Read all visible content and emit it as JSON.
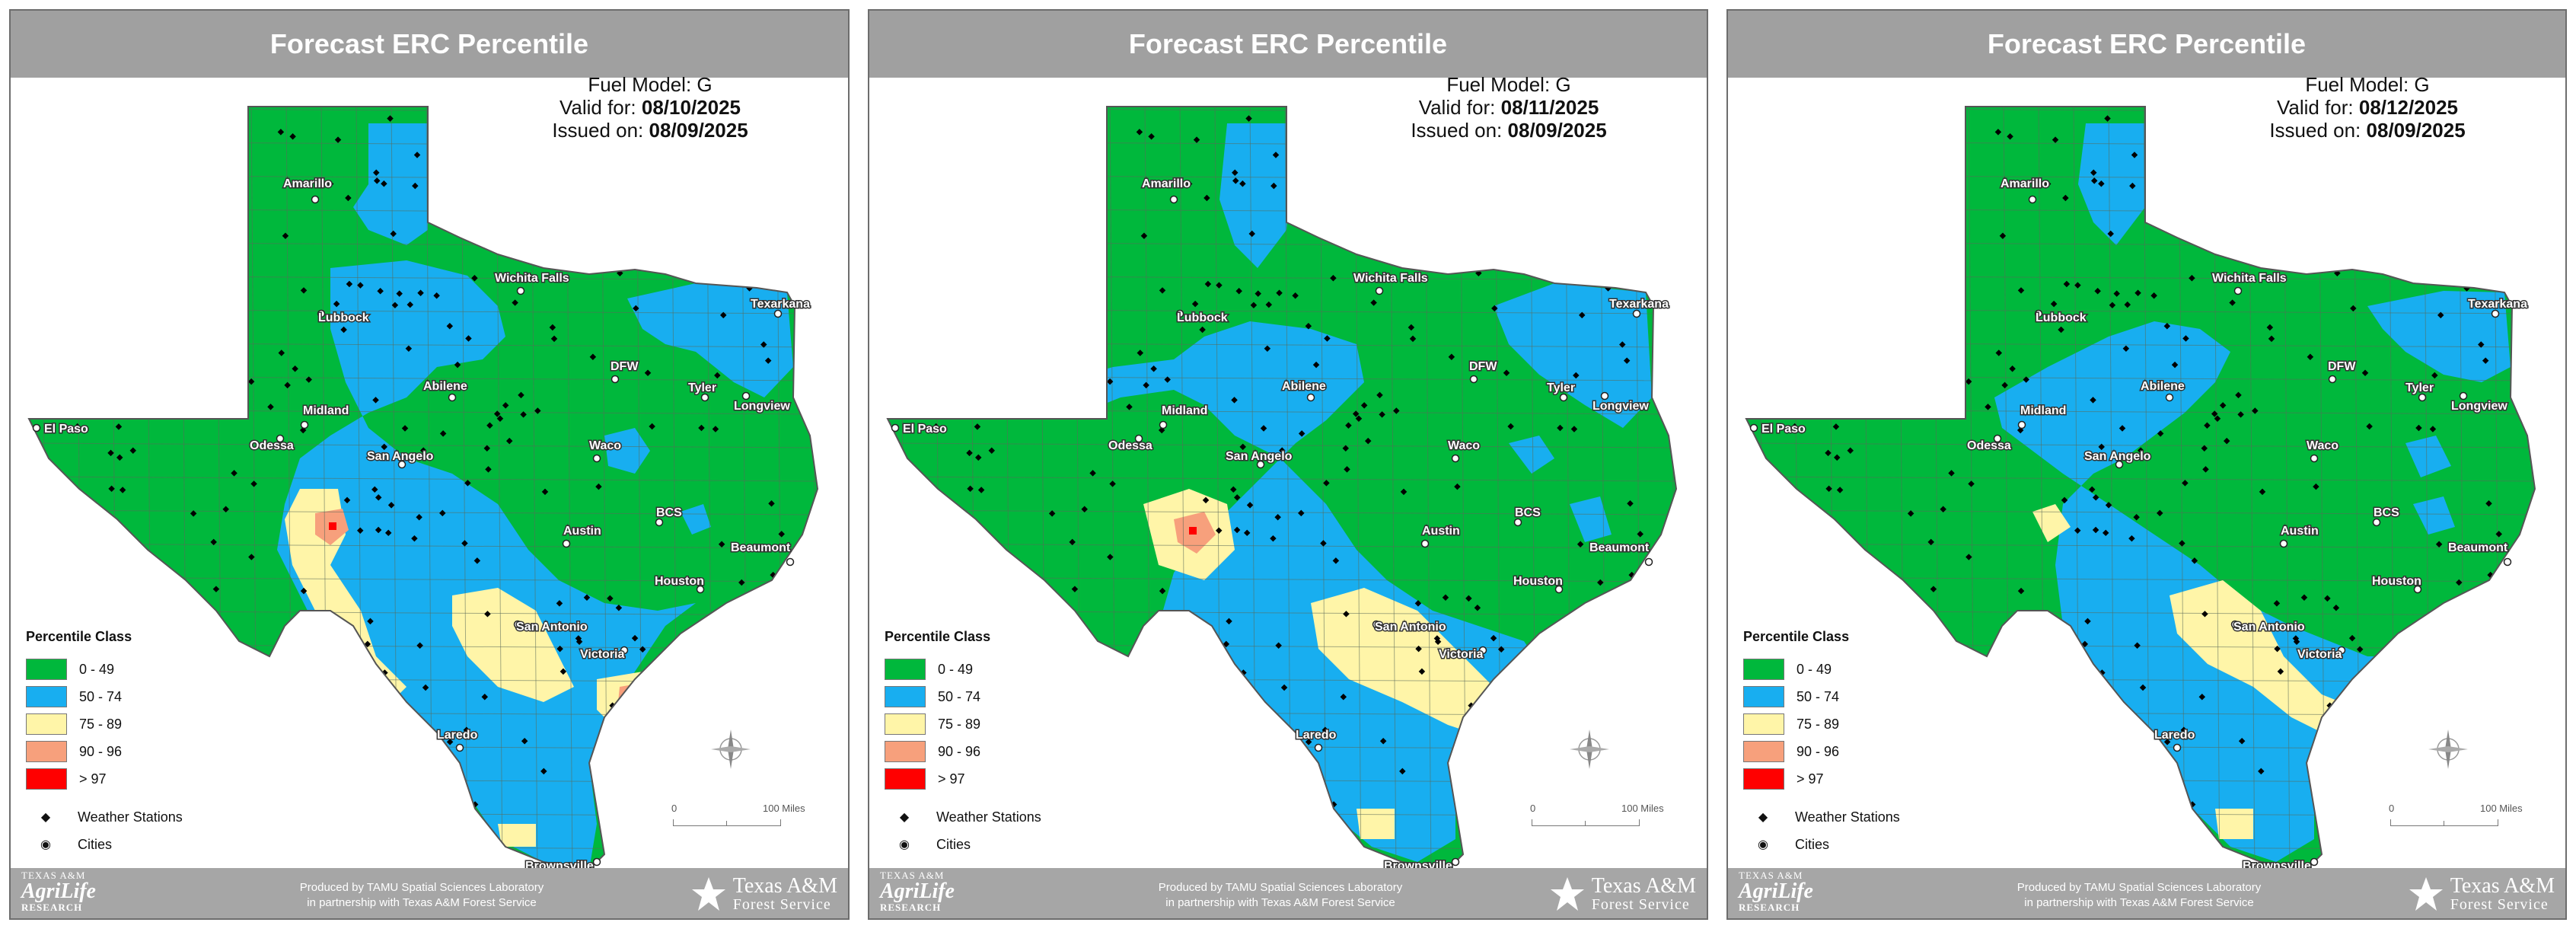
{
  "panels": [
    {
      "title": "Forecast ERC Percentile",
      "fuel_model_label": "Fuel Model:",
      "fuel_model": "G",
      "valid_label": "Valid for:",
      "valid_date": "08/10/2025",
      "issued_label": "Issued on:",
      "issued_date": "08/09/2025",
      "variant": 0
    },
    {
      "title": "Forecast ERC Percentile",
      "fuel_model_label": "Fuel Model:",
      "fuel_model": "G",
      "valid_label": "Valid for:",
      "valid_date": "08/11/2025",
      "issued_label": "Issued on:",
      "issued_date": "08/09/2025",
      "variant": 1
    },
    {
      "title": "Forecast ERC Percentile",
      "fuel_model_label": "Fuel Model:",
      "fuel_model": "G",
      "valid_label": "Valid for:",
      "valid_date": "08/12/2025",
      "issued_label": "Issued on:",
      "issued_date": "08/09/2025",
      "variant": 2
    }
  ],
  "legend": {
    "title": "Percentile Class",
    "classes": [
      {
        "label": "0 - 49",
        "color": "#00b83c"
      },
      {
        "label": "50 - 74",
        "color": "#18aef0"
      },
      {
        "label": "75 - 89",
        "color": "#fff5a8"
      },
      {
        "label": "90 - 96",
        "color": "#f7a07c"
      },
      {
        "label": "> 97",
        "color": "#ff0000"
      }
    ],
    "symbols": [
      {
        "label": "Weather Stations",
        "icon": "diamond"
      },
      {
        "label": "Cities",
        "icon": "circle-dot"
      }
    ]
  },
  "cities": [
    "Amarillo",
    "Lubbock",
    "Wichita Falls",
    "Texarkana",
    "DFW",
    "Tyler",
    "Longview",
    "Abilene",
    "Midland",
    "El Paso",
    "Odessa",
    "San Angelo",
    "Waco",
    "BCS",
    "Austin",
    "Beaumont",
    "Houston",
    "San Antonio",
    "Victoria",
    "Laredo",
    "Brownsville"
  ],
  "scale": {
    "zero": "0",
    "max": "100 Miles"
  },
  "footer": {
    "credit_line1": "Produced by TAMU Spatial Sciences Laboratory",
    "credit_line2": "in partnership with Texas A&M Forest Service",
    "left_logo_1": "TEXAS A&M",
    "left_logo_2": "AgriLife",
    "left_logo_3": "RESEARCH",
    "right_logo_1": "Texas A&M",
    "right_logo_2": "Forest Service"
  }
}
